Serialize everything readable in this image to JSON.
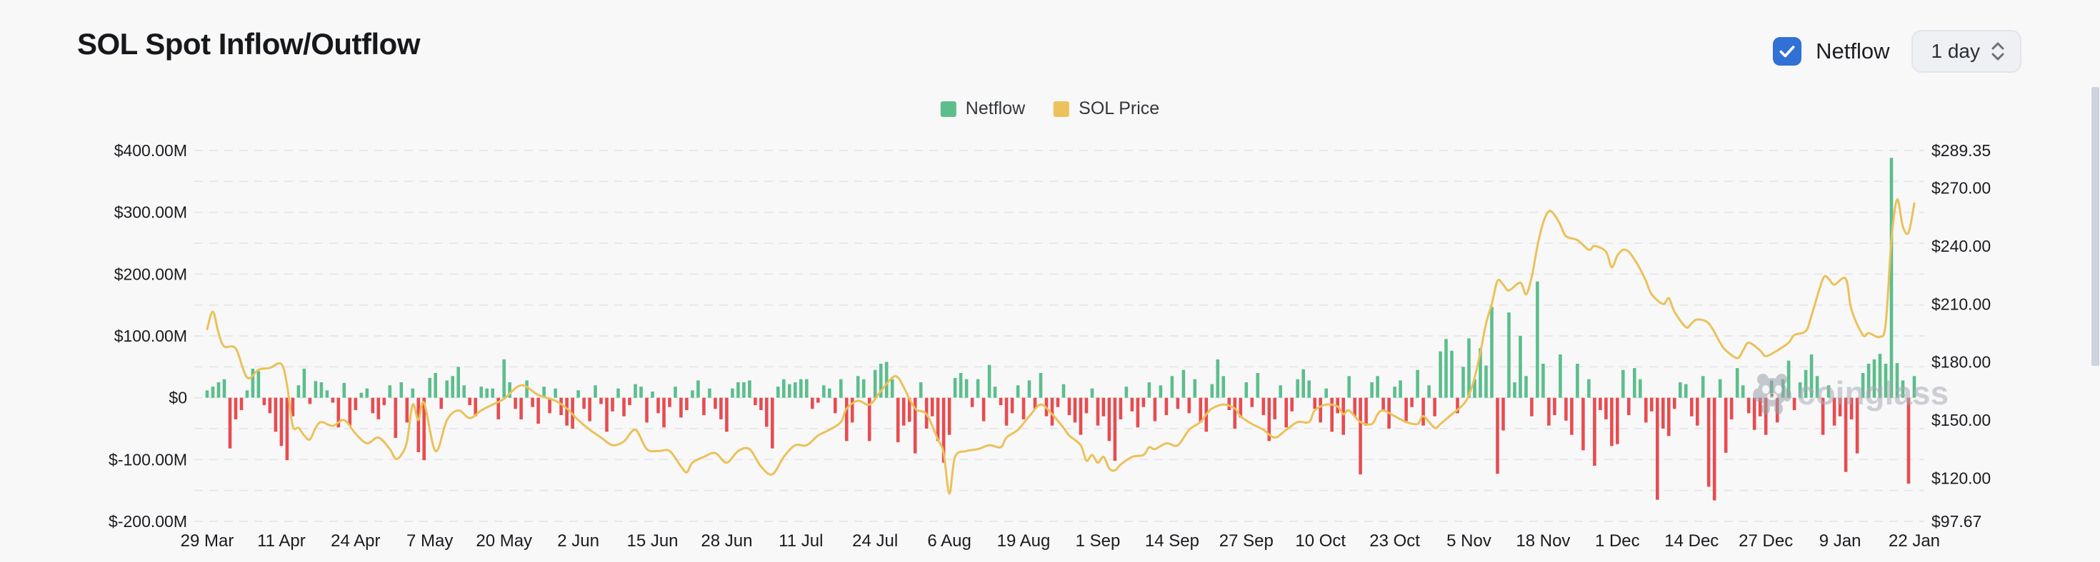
{
  "header": {
    "title": "SOL Spot Inflow/Outflow",
    "netflow_toggle_label": "Netflow",
    "netflow_toggle_checked": true,
    "interval_value": "1 day",
    "accent_blue": "#3170d4"
  },
  "legend": {
    "items": [
      {
        "label": "Netflow",
        "color": "#5cbe8c"
      },
      {
        "label": "SOL Price",
        "color": "#ebc25b"
      }
    ]
  },
  "watermark_text": "coinglass",
  "chart_data": {
    "type": "bar+line",
    "title": "SOL Spot Inflow/Outflow",
    "x_tick_labels": [
      "29 Mar",
      "11 Apr",
      "24 Apr",
      "7 May",
      "20 May",
      "2 Jun",
      "15 Jun",
      "28 Jun",
      "11 Jul",
      "24 Jul",
      "6 Aug",
      "19 Aug",
      "1 Sep",
      "14 Sep",
      "27 Sep",
      "10 Oct",
      "23 Oct",
      "5 Nov",
      "18 Nov",
      "1 Dec",
      "14 Dec",
      "27 Dec",
      "9 Jan",
      "22 Jan"
    ],
    "x_tick_interval_days": 13,
    "days_total": 300,
    "left_axis": {
      "unit": "USD millions",
      "tick_values_m": [
        400,
        300,
        200,
        100,
        0,
        -100,
        -200
      ],
      "tick_labels": [
        "$400.00M",
        "$300.00M",
        "$200.00M",
        "$100.00M",
        "$0",
        "$-100.00M",
        "$-200.00M"
      ],
      "min_m": -200,
      "max_m": 400,
      "minor_grid_step_m": 50
    },
    "right_axis": {
      "unit": "USD",
      "tick_values": [
        289.35,
        270,
        240,
        210,
        180,
        150,
        120,
        97.67
      ],
      "tick_labels": [
        "$289.35",
        "$270.00",
        "$240.00",
        "$210.00",
        "$180.00",
        "$150.00",
        "$120.00",
        "$97.67"
      ],
      "min": 97.67,
      "max": 289.35
    },
    "grid": {
      "style": "dashed",
      "color": "#e7e8eb"
    },
    "series": [
      {
        "name": "Netflow",
        "type": "bar",
        "unit": "USD millions per day",
        "color_positive": "#5cbe8c",
        "color_negative": "#e74c50",
        "values_daily_musd": [
          12,
          18,
          25,
          30,
          -82,
          -35,
          -20,
          12,
          47,
          43,
          -12,
          -25,
          -55,
          -78,
          -101,
          -30,
          20,
          47,
          -10,
          27,
          25,
          12,
          -8,
          -48,
          24,
          -45,
          -20,
          8,
          15,
          -25,
          -35,
          -12,
          20,
          -65,
          25,
          -40,
          15,
          -88,
          -101,
          32,
          40,
          -18,
          28,
          35,
          50,
          20,
          -12,
          -30,
          18,
          15,
          15,
          -35,
          62,
          25,
          -18,
          -35,
          28,
          -15,
          -42,
          18,
          -25,
          15,
          -28,
          -45,
          -50,
          12,
          -18,
          -38,
          20,
          -10,
          -55,
          -22,
          15,
          -30,
          -12,
          22,
          18,
          -40,
          10,
          -25,
          -48,
          -15,
          18,
          -32,
          -20,
          12,
          28,
          -28,
          15,
          -18,
          -35,
          -55,
          15,
          25,
          25,
          28,
          -12,
          -20,
          -47,
          -82,
          18,
          30,
          22,
          25,
          30,
          30,
          -18,
          -8,
          20,
          15,
          -25,
          30,
          -70,
          -40,
          35,
          30,
          -70,
          45,
          55,
          58,
          30,
          -72,
          -45,
          -39,
          -90,
          25,
          -50,
          -30,
          -70,
          -105,
          -60,
          32,
          40,
          30,
          -15,
          30,
          -38,
          53,
          18,
          -12,
          -45,
          -25,
          20,
          -35,
          28,
          -18,
          40,
          -30,
          -45,
          -15,
          22,
          -28,
          -40,
          -60,
          -25,
          15,
          -45,
          -30,
          -70,
          -102,
          -35,
          18,
          -22,
          -48,
          -15,
          25,
          -38,
          20,
          -28,
          35,
          -18,
          45,
          -25,
          30,
          -40,
          -55,
          22,
          62,
          35,
          -20,
          -50,
          -32,
          25,
          -15,
          40,
          -28,
          -70,
          -35,
          20,
          -48,
          -22,
          30,
          46,
          28,
          -18,
          -40,
          15,
          -55,
          -25,
          -60,
          35,
          -30,
          -124,
          -45,
          25,
          35,
          -20,
          -50,
          18,
          28,
          -38,
          -15,
          45,
          -45,
          20,
          -30,
          75,
          95,
          76,
          -25,
          50,
          96,
          30,
          80,
          52,
          147,
          -123,
          -53,
          138,
          25,
          100,
          35,
          -30,
          188,
          55,
          -45,
          -28,
          70,
          -37,
          -60,
          55,
          -85,
          30,
          -110,
          -20,
          -35,
          -78,
          -75,
          45,
          -28,
          48,
          30,
          -40,
          -22,
          -165,
          -50,
          -62,
          -18,
          25,
          22,
          -30,
          -45,
          35,
          -144,
          -166,
          30,
          -89,
          -35,
          48,
          20,
          -25,
          -52,
          -30,
          -60,
          28,
          -40,
          30,
          60,
          -20,
          25,
          45,
          70,
          35,
          -60,
          20,
          -45,
          -30,
          -120,
          -35,
          -90,
          40,
          55,
          62,
          71,
          55,
          388,
          56,
          28,
          -139,
          35
        ]
      },
      {
        "name": "SOL Price",
        "type": "line",
        "unit": "USD",
        "color": "#ebc158",
        "points_day_value": [
          [
            0,
            197
          ],
          [
            1,
            206
          ],
          [
            2,
            195
          ],
          [
            3,
            188
          ],
          [
            5,
            187
          ],
          [
            7,
            172
          ],
          [
            9,
            176
          ],
          [
            11,
            177
          ],
          [
            13,
            179
          ],
          [
            14,
            168
          ],
          [
            15,
            147
          ],
          [
            16,
            146
          ],
          [
            17,
            142
          ],
          [
            18,
            140
          ],
          [
            19,
            146
          ],
          [
            20,
            149
          ],
          [
            22,
            147
          ],
          [
            24,
            150
          ],
          [
            26,
            143
          ],
          [
            28,
            138
          ],
          [
            30,
            141
          ],
          [
            32,
            135
          ],
          [
            33,
            130
          ],
          [
            34,
            132
          ],
          [
            35,
            139
          ],
          [
            36,
            158
          ],
          [
            37,
            150
          ],
          [
            38,
            159
          ],
          [
            40,
            134
          ],
          [
            42,
            150
          ],
          [
            44,
            155
          ],
          [
            46,
            151
          ],
          [
            48,
            155
          ],
          [
            50,
            158
          ],
          [
            52,
            161
          ],
          [
            55,
            168
          ],
          [
            58,
            163
          ],
          [
            61,
            160
          ],
          [
            63,
            156
          ],
          [
            65,
            150
          ],
          [
            67,
            145
          ],
          [
            69,
            141
          ],
          [
            71,
            137
          ],
          [
            73,
            139
          ],
          [
            75,
            145
          ],
          [
            77,
            135
          ],
          [
            79,
            134
          ],
          [
            81,
            134
          ],
          [
            83,
            126
          ],
          [
            84,
            123
          ],
          [
            85,
            128
          ],
          [
            87,
            131
          ],
          [
            89,
            133
          ],
          [
            91,
            128
          ],
          [
            93,
            134
          ],
          [
            95,
            135
          ],
          [
            97,
            126
          ],
          [
            99,
            122
          ],
          [
            101,
            131
          ],
          [
            103,
            137
          ],
          [
            105,
            137
          ],
          [
            107,
            142
          ],
          [
            109,
            145
          ],
          [
            111,
            149
          ],
          [
            112,
            156
          ],
          [
            114,
            160
          ],
          [
            116,
            158
          ],
          [
            118,
            165
          ],
          [
            120,
            172
          ],
          [
            121,
            172
          ],
          [
            122,
            167
          ],
          [
            124,
            156
          ],
          [
            126,
            153
          ],
          [
            128,
            140
          ],
          [
            129,
            133
          ],
          [
            130,
            112
          ],
          [
            131,
            131
          ],
          [
            133,
            134
          ],
          [
            135,
            135
          ],
          [
            137,
            137
          ],
          [
            139,
            136
          ],
          [
            140,
            141
          ],
          [
            142,
            145
          ],
          [
            144,
            152
          ],
          [
            146,
            158
          ],
          [
            148,
            153
          ],
          [
            150,
            146
          ],
          [
            151,
            142
          ],
          [
            153,
            137
          ],
          [
            154,
            129
          ],
          [
            155,
            132
          ],
          [
            156,
            128
          ],
          [
            157,
            131
          ],
          [
            158,
            125
          ],
          [
            159,
            124
          ],
          [
            160,
            127
          ],
          [
            162,
            131
          ],
          [
            164,
            132
          ],
          [
            165,
            136
          ],
          [
            166,
            135
          ],
          [
            168,
            138
          ],
          [
            170,
            137
          ],
          [
            172,
            145
          ],
          [
            174,
            149
          ],
          [
            175,
            153
          ],
          [
            176,
            156
          ],
          [
            178,
            158
          ],
          [
            180,
            156
          ],
          [
            181,
            152
          ],
          [
            183,
            148
          ],
          [
            185,
            145
          ],
          [
            187,
            141
          ],
          [
            189,
            145
          ],
          [
            191,
            149
          ],
          [
            193,
            149
          ],
          [
            194,
            155
          ],
          [
            196,
            158
          ],
          [
            198,
            157
          ],
          [
            199,
            153
          ],
          [
            200,
            155
          ],
          [
            202,
            149
          ],
          [
            204,
            148
          ],
          [
            205,
            153
          ],
          [
            206,
            155
          ],
          [
            208,
            152
          ],
          [
            210,
            149
          ],
          [
            212,
            148
          ],
          [
            213,
            152
          ],
          [
            215,
            146
          ],
          [
            216,
            148
          ],
          [
            218,
            153
          ],
          [
            220,
            158
          ],
          [
            221,
            163
          ],
          [
            222,
            172
          ],
          [
            223,
            185
          ],
          [
            224,
            200
          ],
          [
            225,
            210
          ],
          [
            226,
            222
          ],
          [
            227,
            220
          ],
          [
            228,
            217
          ],
          [
            230,
            221
          ],
          [
            231,
            215
          ],
          [
            232,
            224
          ],
          [
            233,
            240
          ],
          [
            234,
            252
          ],
          [
            235,
            258
          ],
          [
            236,
            256
          ],
          [
            237,
            251
          ],
          [
            238,
            245
          ],
          [
            240,
            243
          ],
          [
            242,
            238
          ],
          [
            243,
            240
          ],
          [
            245,
            237
          ],
          [
            246,
            229
          ],
          [
            247,
            235
          ],
          [
            248,
            238
          ],
          [
            249,
            237
          ],
          [
            250,
            233
          ],
          [
            251,
            228
          ],
          [
            252,
            222
          ],
          [
            253,
            215
          ],
          [
            255,
            210
          ],
          [
            256,
            213
          ],
          [
            257,
            206
          ],
          [
            259,
            198
          ],
          [
            260,
            200
          ],
          [
            261,
            202
          ],
          [
            263,
            200
          ],
          [
            265,
            190
          ],
          [
            266,
            186
          ],
          [
            268,
            182
          ],
          [
            269,
            186
          ],
          [
            270,
            190
          ],
          [
            272,
            186
          ],
          [
            273,
            183
          ],
          [
            275,
            186
          ],
          [
            277,
            190
          ],
          [
            278,
            194
          ],
          [
            280,
            196
          ],
          [
            281,
            204
          ],
          [
            283,
            223
          ],
          [
            284,
            223
          ],
          [
            285,
            220
          ],
          [
            287,
            223
          ],
          [
            288,
            207
          ],
          [
            290,
            194
          ],
          [
            291,
            195
          ],
          [
            293,
            193
          ],
          [
            294,
            200
          ],
          [
            295,
            243
          ],
          [
            296,
            264
          ],
          [
            297,
            250
          ],
          [
            298,
            247
          ],
          [
            299,
            262
          ]
        ]
      }
    ]
  },
  "scrollbar": {
    "visible": true
  }
}
